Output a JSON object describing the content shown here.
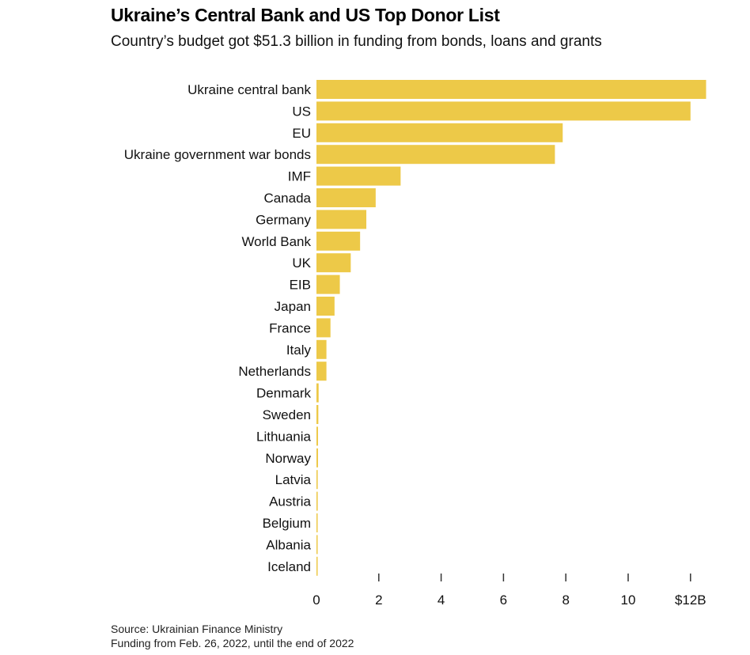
{
  "chart_data": {
    "type": "bar",
    "orientation": "horizontal",
    "title": "Ukraine’s Central Bank and US Top Donor List",
    "subtitle": "Country’s budget got $51.3 billion in funding from bonds, loans and grants",
    "categories": [
      "Ukraine central bank",
      "US",
      "EU",
      "Ukraine government war bonds",
      "IMF",
      "Canada",
      "Germany",
      "World Bank",
      "UK",
      "EIB",
      "Japan",
      "France",
      "Italy",
      "Netherlands",
      "Denmark",
      "Sweden",
      "Lithuania",
      "Norway",
      "Latvia",
      "Austria",
      "Belgium",
      "Albania",
      "Iceland"
    ],
    "values": [
      12.5,
      12.0,
      7.9,
      7.65,
      2.7,
      1.9,
      1.6,
      1.4,
      1.1,
      0.75,
      0.58,
      0.45,
      0.32,
      0.32,
      0.07,
      0.06,
      0.05,
      0.05,
      0.04,
      0.04,
      0.03,
      0.02,
      0.01
    ],
    "xticks": [
      "0",
      "2",
      "4",
      "6",
      "8",
      "10",
      "$12B"
    ],
    "xtick_values": [
      0,
      2,
      4,
      6,
      8,
      10,
      12
    ],
    "xlim": [
      0,
      12.5
    ],
    "bar_color": "#EDC948",
    "grid": false
  },
  "footer": {
    "source": "Source: Ukrainian Finance Ministry",
    "note": "Funding from Feb. 26, 2022, until the end of 2022"
  }
}
